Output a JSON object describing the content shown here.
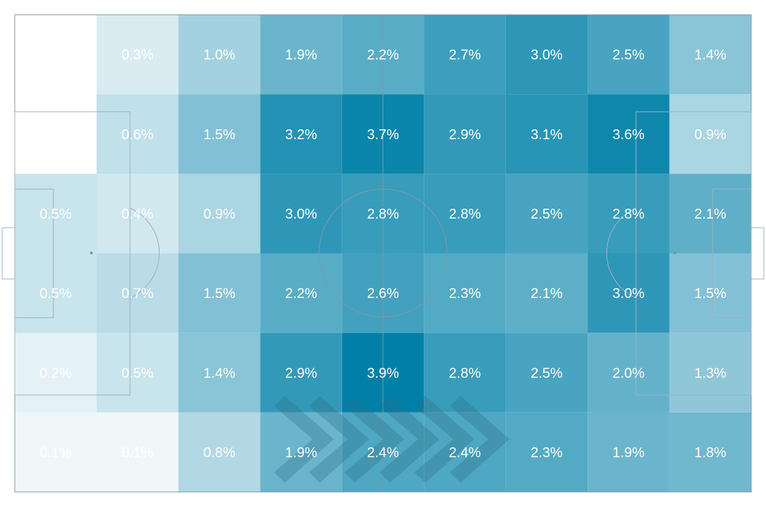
{
  "chart_data": {
    "type": "heatmap",
    "title": "",
    "xlabel": "",
    "ylabel": "",
    "grid": {
      "columns": 9,
      "rows": 6
    },
    "value_unit": "%",
    "colormap": {
      "low": "#ffffff",
      "high": "#0080a8"
    },
    "values": [
      [
        0.0,
        0.3,
        1.0,
        1.9,
        2.2,
        2.7,
        3.0,
        2.5,
        1.4
      ],
      [
        0.0,
        0.6,
        1.5,
        3.2,
        3.7,
        2.9,
        3.1,
        3.6,
        0.9
      ],
      [
        0.5,
        0.4,
        0.9,
        3.0,
        2.8,
        2.8,
        2.5,
        2.8,
        2.1
      ],
      [
        0.5,
        0.7,
        1.5,
        2.2,
        2.6,
        2.3,
        2.1,
        3.0,
        1.5
      ],
      [
        0.2,
        0.5,
        1.4,
        2.9,
        3.9,
        2.8,
        2.5,
        2.0,
        1.3
      ],
      [
        0.1,
        0.1,
        0.8,
        1.9,
        2.4,
        2.4,
        2.3,
        1.9,
        1.8
      ]
    ],
    "labels": [
      [
        "",
        "0.3%",
        "1.0%",
        "1.9%",
        "2.2%",
        "2.7%",
        "3.0%",
        "2.5%",
        "1.4%"
      ],
      [
        "",
        "0.6%",
        "1.5%",
        "3.2%",
        "3.7%",
        "2.9%",
        "3.1%",
        "3.6%",
        "0.9%"
      ],
      [
        "0.5%",
        "0.4%",
        "0.9%",
        "3.0%",
        "2.8%",
        "2.8%",
        "2.5%",
        "2.8%",
        "2.1%"
      ],
      [
        "0.5%",
        "0.7%",
        "1.5%",
        "2.2%",
        "2.6%",
        "2.3%",
        "2.1%",
        "3.0%",
        "1.5%"
      ],
      [
        "0.2%",
        "0.5%",
        "1.4%",
        "2.9%",
        "3.9%",
        "2.8%",
        "2.5%",
        "2.0%",
        "1.3%"
      ],
      [
        "0.1%",
        "0.1%",
        "0.8%",
        "1.9%",
        "2.4%",
        "2.4%",
        "2.3%",
        "1.9%",
        "1.8%"
      ]
    ],
    "background": "football-pitch",
    "attack_direction": "left-to-right"
  }
}
